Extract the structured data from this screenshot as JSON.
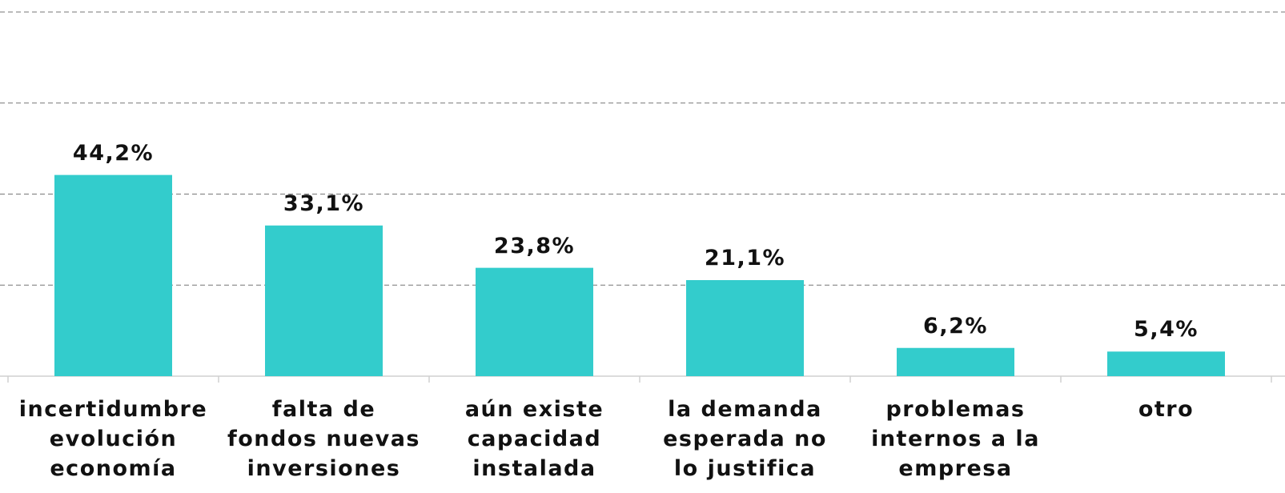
{
  "chart_data": {
    "type": "bar",
    "categories": [
      "incertidumbre\nevolución\neconomía",
      "falta de\nfondos nuevas\ninversiones",
      "aún existe\ncapacidad\ninstalada",
      "la demanda\nesperada no\nlo justifica",
      "problemas\ninternos a la\nempresa",
      "otro"
    ],
    "values": [
      44.2,
      33.1,
      23.8,
      21.1,
      6.2,
      5.4
    ],
    "value_labels": [
      "44,2%",
      "33,1%",
      "23,8%",
      "21,1%",
      "6,2%",
      "5,4%"
    ],
    "color": "#33cccc",
    "ylim": [
      0,
      80
    ],
    "yticks": [
      0,
      20,
      40,
      60,
      80
    ],
    "grid": true
  }
}
